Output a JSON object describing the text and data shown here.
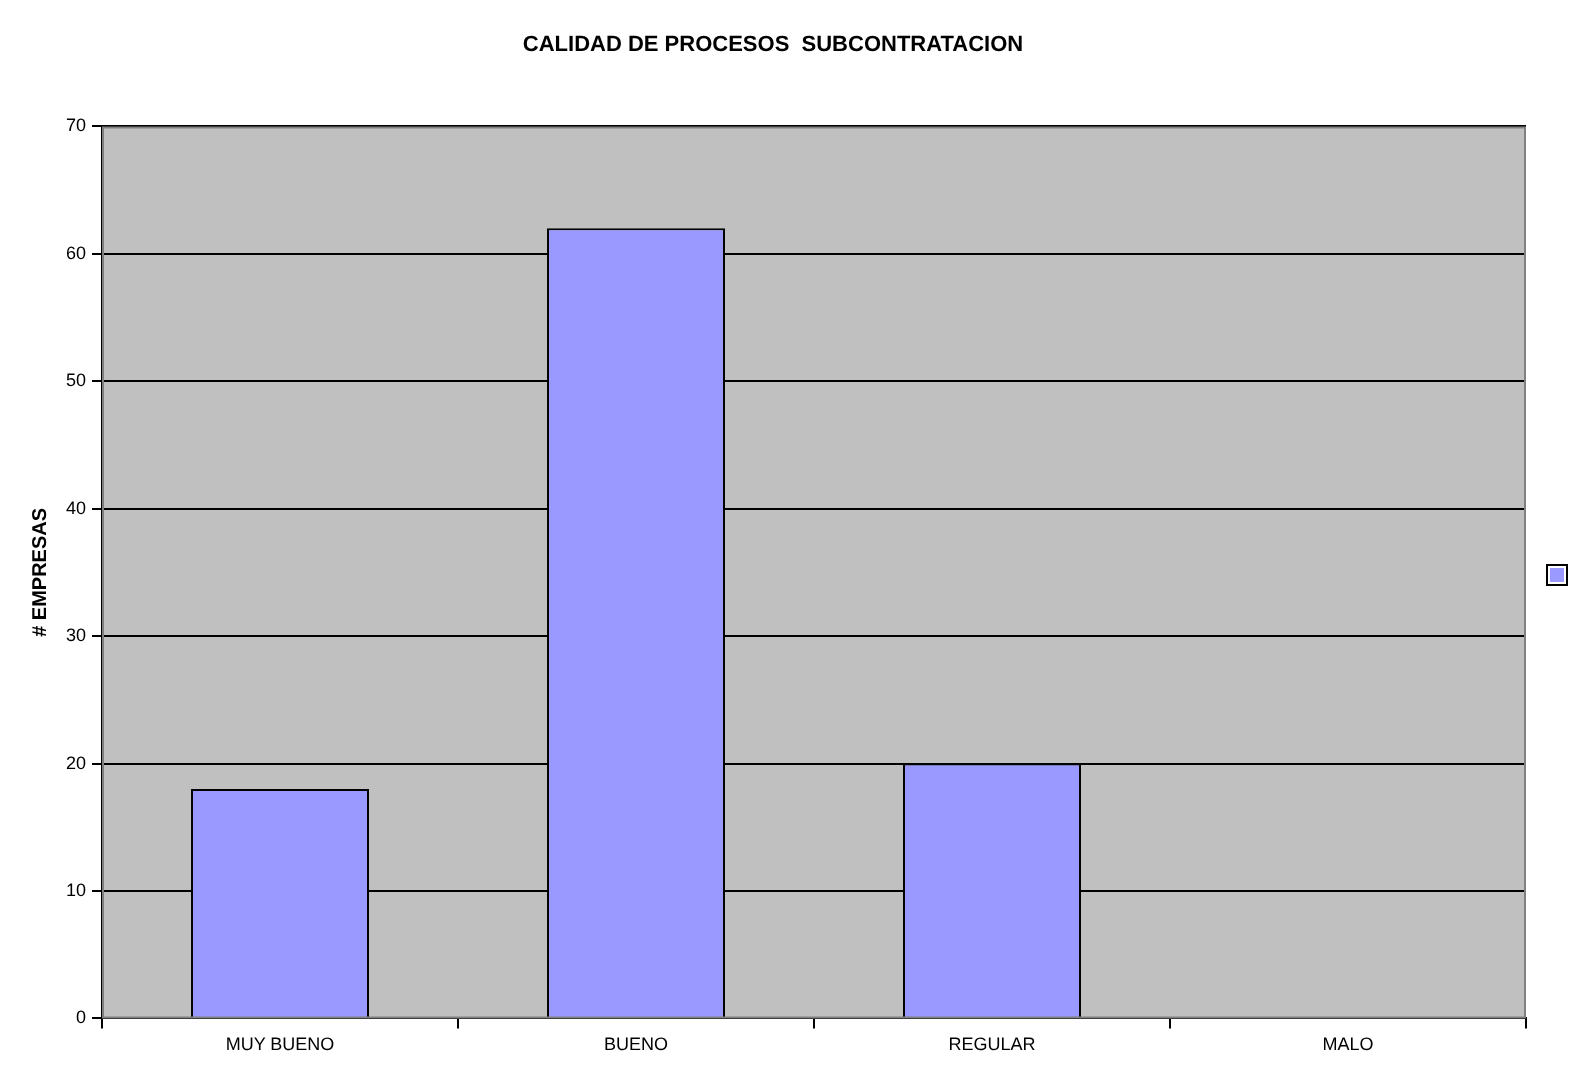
{
  "chart_data": {
    "type": "bar",
    "title": "CALIDAD DE PROCESOS  SUBCONTRATACION",
    "ylabel": "# EMPRESAS",
    "categories": [
      "MUY BUENO",
      "BUENO",
      "REGULAR",
      "MALO"
    ],
    "series": [
      {
        "color": "#9999ff",
        "values": [
          18,
          62,
          20,
          0
        ]
      }
    ],
    "ylim": [
      0,
      70
    ],
    "yticks": [
      0,
      10,
      20,
      30,
      40,
      50,
      60,
      70
    ],
    "grid": "y"
  }
}
